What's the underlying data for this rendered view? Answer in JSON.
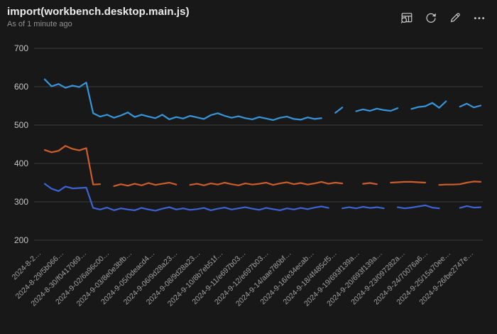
{
  "header": {
    "title": "import(workbench.desktop.main.js)",
    "subtitle": "As of 1 minute ago"
  },
  "toolbar": {
    "icons": [
      "table-search-icon",
      "refresh-icon",
      "edit-pencil-icon",
      "more-ellipsis-icon"
    ]
  },
  "colors": {
    "background": "#181818",
    "grid": "#3d3d3d",
    "y_tick_text": "#c6c6c6",
    "x_tick_text": "#a0a0a0",
    "series_light_blue": "#3796db",
    "series_orange": "#cd5d2c",
    "series_dark_blue": "#3e63d4"
  },
  "chart_data": {
    "type": "line",
    "title": "import(workbench.desktop.main.js)",
    "grid": true,
    "legend": false,
    "ylim": [
      200,
      700
    ],
    "yticks": [
      200,
      300,
      400,
      500,
      600,
      700
    ],
    "x_tick_labels": [
      "2024-8-2…",
      "2024-8-29/5b066…",
      "2024-8-30/f0417069…",
      "2024-9-02/6a96c00…",
      "2024-9-03/8e0e3bfb…",
      "2024-9-05/0deacd4…",
      "2024-9-06/9d28a23…",
      "2024-9-08/9d28a23…",
      "2024-9-10/8b7eb51f…",
      "2024-9-11/e697b03…",
      "2024-9-12/e697b03…",
      "2024-9-14/aae780bf…",
      "2024-9-16/e34ecab…",
      "2024-9-18/4f485cf5…",
      "2024-9-19/693f139a…",
      "2024-9-20/693f139a…",
      "2024-9-23/097282a…",
      "2024-9-24/70076a6…",
      "2024-9-25/15a70ee…",
      "2024-9-26/be2747e…"
    ],
    "series": [
      {
        "name": "series-1-light-blue",
        "color": "#3796db",
        "values": [
          619,
          601,
          607,
          597,
          603,
          599,
          611,
          531,
          522,
          527,
          519,
          525,
          533,
          521,
          527,
          522,
          518,
          527,
          515,
          521,
          517,
          524,
          520,
          516,
          526,
          531,
          524,
          519,
          523,
          518,
          515,
          521,
          517,
          513,
          519,
          522,
          516,
          514,
          520,
          516,
          518,
          null,
          532,
          546,
          null,
          536,
          541,
          537,
          543,
          539,
          537,
          544,
          null,
          542,
          547,
          549,
          558,
          545,
          562,
          null,
          548,
          556,
          546,
          551
        ]
      },
      {
        "name": "series-2-orange",
        "color": "#cd5d2c",
        "values": [
          435,
          429,
          433,
          446,
          438,
          434,
          440,
          345,
          346,
          null,
          341,
          346,
          342,
          347,
          343,
          349,
          344,
          347,
          350,
          345,
          null,
          344,
          347,
          343,
          348,
          345,
          350,
          346,
          343,
          348,
          345,
          347,
          350,
          344,
          348,
          351,
          346,
          349,
          345,
          348,
          352,
          347,
          350,
          348,
          null,
          null,
          347,
          349,
          346,
          null,
          350,
          351,
          352,
          352,
          351,
          350,
          null,
          344,
          345,
          345,
          346,
          350,
          353,
          352
        ]
      },
      {
        "name": "series-3-dark-blue",
        "color": "#3e63d4",
        "values": [
          347,
          334,
          328,
          340,
          335,
          336,
          337,
          284,
          280,
          285,
          278,
          283,
          280,
          278,
          284,
          280,
          277,
          282,
          286,
          280,
          283,
          279,
          281,
          284,
          278,
          282,
          285,
          280,
          283,
          286,
          282,
          279,
          284,
          281,
          278,
          283,
          280,
          284,
          281,
          285,
          288,
          284,
          null,
          283,
          286,
          283,
          287,
          284,
          286,
          283,
          null,
          286,
          283,
          285,
          288,
          291,
          285,
          283,
          null,
          null,
          284,
          289,
          285,
          286
        ]
      }
    ]
  }
}
